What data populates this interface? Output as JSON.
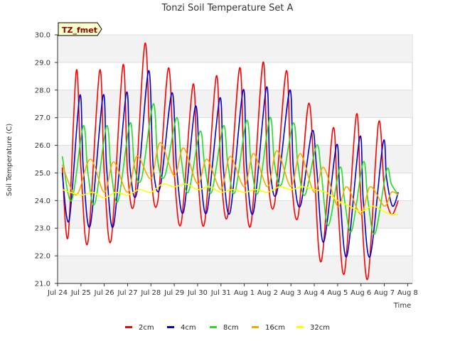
{
  "chart_data": {
    "type": "line",
    "title": "Tonzi Soil Temperature Set A",
    "xlabel": "Time",
    "ylabel": "Soil Temperature (C)",
    "badge": "TZ_fmet",
    "ylim": [
      21.0,
      30.0
    ],
    "xlim": [
      0,
      15
    ],
    "yticks": [
      "21.0",
      "22.0",
      "23.0",
      "24.0",
      "25.0",
      "26.0",
      "27.0",
      "28.0",
      "29.0",
      "30.0"
    ],
    "xtick_labels": [
      "Jul 24",
      "Jul 25",
      "Jul 26",
      "Jul 27",
      "Jul 28",
      "Jul 29",
      "Jul 30",
      "Jul 31",
      "Aug 1",
      "Aug 2",
      "Aug 3",
      "Aug 4",
      "Aug 5",
      "Aug 6",
      "Aug 7",
      "Aug 8"
    ],
    "grid": "horizontal bands",
    "legend_position": "bottom",
    "series": [
      {
        "name": "2cm",
        "color": "#ff0000",
        "x": [
          0.2,
          0.45,
          0.8,
          1.0,
          1.3,
          1.8,
          2.0,
          2.3,
          2.8,
          3.0,
          3.3,
          3.75,
          4.0,
          4.3,
          4.75,
          5.0,
          5.3,
          5.8,
          6.0,
          6.3,
          6.8,
          7.0,
          7.3,
          7.8,
          8.0,
          8.3,
          8.8,
          9.0,
          9.3,
          9.8,
          10.0,
          10.3,
          10.75,
          11.0,
          11.3,
          11.8,
          12.0,
          12.3,
          12.8,
          13.0,
          13.3,
          13.75,
          14.0,
          14.3,
          14.6
        ],
        "y": [
          25.2,
          22.7,
          28.7,
          25.2,
          22.5,
          28.7,
          25.0,
          22.6,
          28.9,
          25.0,
          24.0,
          29.7,
          25.0,
          24.0,
          28.8,
          25.0,
          23.2,
          28.2,
          25.0,
          23.2,
          28.5,
          25.0,
          23.5,
          28.8,
          25.0,
          23.2,
          29.0,
          25.0,
          23.9,
          28.7,
          25.0,
          23.4,
          27.5,
          25.0,
          21.8,
          26.6,
          24.0,
          21.4,
          27.1,
          24.0,
          21.2,
          26.8,
          24.5,
          23.5,
          24.0
        ]
      },
      {
        "name": "4cm",
        "color": "#0000cc",
        "x": [
          0.2,
          0.5,
          0.95,
          1.1,
          1.4,
          1.95,
          2.1,
          2.4,
          2.95,
          3.1,
          3.4,
          3.9,
          4.1,
          4.4,
          4.9,
          5.1,
          5.4,
          5.9,
          6.1,
          6.4,
          6.95,
          7.1,
          7.4,
          7.95,
          8.1,
          8.4,
          8.95,
          9.1,
          9.4,
          9.95,
          10.1,
          10.4,
          10.9,
          11.1,
          11.4,
          11.95,
          12.1,
          12.4,
          12.95,
          13.1,
          13.4,
          13.95,
          14.1,
          14.35,
          14.6
        ],
        "y": [
          25.0,
          23.3,
          27.8,
          25.2,
          23.1,
          27.8,
          25.2,
          23.1,
          27.9,
          25.2,
          24.3,
          28.7,
          25.2,
          24.5,
          27.9,
          25.2,
          23.6,
          27.4,
          25.2,
          23.6,
          27.7,
          25.2,
          23.6,
          28.0,
          25.2,
          23.6,
          28.1,
          25.2,
          24.3,
          28.0,
          25.2,
          23.8,
          26.5,
          25.2,
          22.5,
          26.0,
          24.2,
          22.0,
          26.3,
          24.0,
          22.0,
          26.1,
          24.8,
          23.8,
          24.3
        ]
      },
      {
        "name": "8cm",
        "color": "#22dd22",
        "x": [
          0.2,
          0.6,
          1.1,
          1.3,
          1.6,
          2.1,
          2.3,
          2.6,
          3.1,
          3.3,
          3.6,
          4.1,
          4.3,
          4.6,
          5.1,
          5.3,
          5.6,
          6.1,
          6.3,
          6.6,
          7.1,
          7.3,
          7.6,
          8.1,
          8.3,
          8.6,
          9.1,
          9.3,
          9.6,
          10.1,
          10.3,
          10.6,
          11.1,
          11.3,
          11.6,
          12.1,
          12.3,
          12.6,
          13.1,
          13.3,
          13.6,
          14.1,
          14.3,
          14.6
        ],
        "y": [
          25.6,
          24.0,
          26.7,
          25.0,
          23.9,
          26.7,
          25.0,
          24.0,
          26.8,
          25.2,
          24.8,
          27.5,
          25.4,
          24.9,
          27.0,
          25.5,
          24.3,
          26.5,
          25.3,
          24.3,
          26.7,
          25.3,
          24.3,
          26.9,
          25.3,
          24.3,
          27.0,
          25.3,
          24.6,
          26.8,
          25.3,
          24.2,
          26.0,
          25.0,
          23.1,
          25.2,
          24.0,
          22.9,
          25.4,
          24.0,
          22.8,
          25.1,
          24.6,
          24.2
        ]
      },
      {
        "name": "16cm",
        "color": "#ffa500",
        "x": [
          0.2,
          0.8,
          1.4,
          2.0,
          2.4,
          3.0,
          3.4,
          4.0,
          4.4,
          5.0,
          5.4,
          6.0,
          6.4,
          7.0,
          7.4,
          8.0,
          8.4,
          9.0,
          9.4,
          10.0,
          10.4,
          11.0,
          11.4,
          12.0,
          12.4,
          13.0,
          13.4,
          14.0,
          14.3,
          14.6
        ],
        "y": [
          25.3,
          24.2,
          25.5,
          24.3,
          25.4,
          24.3,
          25.6,
          24.8,
          26.1,
          24.9,
          25.9,
          24.6,
          25.5,
          24.4,
          25.6,
          24.5,
          25.7,
          24.5,
          25.8,
          24.5,
          25.7,
          24.3,
          25.2,
          23.8,
          24.5,
          23.5,
          24.5,
          23.8,
          24.3,
          24.2
        ]
      },
      {
        "name": "32cm",
        "color": "#ffff00",
        "x": [
          0.2,
          1.0,
          1.5,
          2.0,
          2.5,
          3.0,
          3.5,
          4.0,
          4.5,
          5.0,
          5.5,
          6.0,
          6.5,
          7.0,
          7.5,
          8.0,
          8.5,
          9.0,
          9.5,
          10.0,
          10.5,
          11.0,
          11.5,
          12.0,
          12.5,
          13.0,
          13.5,
          14.0,
          14.3,
          14.6
        ],
        "y": [
          24.4,
          24.2,
          24.3,
          24.1,
          24.3,
          24.2,
          24.4,
          24.3,
          24.6,
          24.5,
          24.6,
          24.4,
          24.5,
          24.3,
          24.4,
          24.3,
          24.4,
          24.3,
          24.5,
          24.4,
          24.5,
          24.4,
          24.3,
          24.0,
          23.8,
          23.6,
          23.8,
          23.6,
          23.5,
          23.5
        ]
      }
    ]
  }
}
